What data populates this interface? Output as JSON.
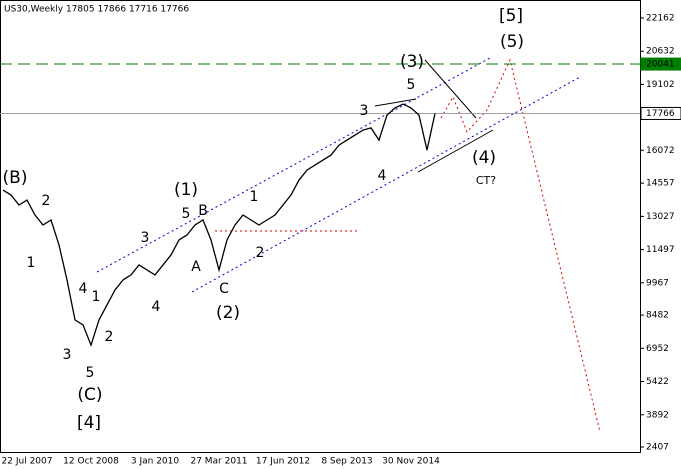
{
  "chart_data": {
    "type": "line",
    "title": "US30,Weekly  17805 17866 17716 17766",
    "categories": [
      null,
      null,
      null,
      "22 Jul 2007",
      null,
      null,
      null,
      null,
      null,
      null,
      null,
      "12 Oct 2008",
      null,
      null,
      null,
      null,
      null,
      null,
      null,
      "3 Jan 2010",
      null,
      null,
      null,
      null,
      null,
      null,
      null,
      "27 Mar 2011",
      null,
      null,
      null,
      null,
      null,
      null,
      null,
      "17 Jun 2012",
      null,
      null,
      null,
      null,
      null,
      null,
      null,
      "8 Sep 2013",
      null,
      null,
      null,
      null,
      null,
      null,
      null,
      "30 Nov 2014",
      null,
      null,
      null,
      null,
      null,
      null,
      null,
      null,
      null,
      null,
      null,
      null,
      null,
      null,
      null,
      null,
      null,
      null,
      null,
      null,
      null,
      null,
      null,
      null,
      null,
      null,
      null,
      null
    ],
    "series": [
      {
        "color": "#000000",
        "values": [
          14240,
          14010,
          13550,
          13780,
          13090,
          12630,
          12860,
          11710,
          10100,
          8260,
          8030,
          7100,
          8260,
          8950,
          9640,
          10100,
          10330,
          10790,
          10560,
          10330,
          10790,
          11250,
          11940,
          12170,
          12630,
          12860,
          11940,
          10560,
          11940,
          12630,
          13090,
          12860,
          12630,
          12860,
          13090,
          13550,
          14010,
          14700,
          15160,
          15390,
          15620,
          15850,
          16310,
          16540,
          16770,
          17000,
          17100,
          16540,
          17690,
          18020,
          18200,
          18020,
          17690,
          16080,
          17766,
          null,
          null,
          null,
          null,
          null,
          null,
          null,
          null,
          null,
          null,
          null,
          null,
          null,
          null,
          null,
          null,
          null,
          null,
          null,
          null,
          null,
          null,
          null,
          null,
          null
        ]
      }
    ],
    "ylim": [
      2407,
      22162
    ],
    "yticks": [
      2407,
      3892,
      5422,
      6952,
      8482,
      9967,
      11497,
      13027,
      14557,
      16072,
      17766,
      19102,
      20041,
      20632,
      22162
    ],
    "levels": [
      {
        "value": 20041,
        "color": "#008000"
      },
      {
        "value": 17766,
        "color": "#a0a0a0"
      }
    ],
    "annotations": [
      {
        "text": "(B)",
        "color": "#000080"
      },
      {
        "text": "2",
        "color": "#993333"
      },
      {
        "text": "1",
        "color": "#993333"
      },
      {
        "text": "4",
        "color": "#993333"
      },
      {
        "text": "1",
        "color": "#993333"
      },
      {
        "text": "2",
        "color": "#993333"
      },
      {
        "text": "3",
        "color": "#993333"
      },
      {
        "text": "5",
        "color": "#993333"
      },
      {
        "text": "(C)",
        "color": "#000080"
      },
      {
        "text": "[4]",
        "color": "#008000"
      },
      {
        "text": "3",
        "color": "#993333"
      },
      {
        "text": "4",
        "color": "#993333"
      },
      {
        "text": "(1)",
        "color": "#000080"
      },
      {
        "text": "5",
        "color": "#993333"
      },
      {
        "text": "B",
        "color": "#993333"
      },
      {
        "text": "A",
        "color": "#993333"
      },
      {
        "text": "C",
        "color": "#993333"
      },
      {
        "text": "(2)",
        "color": "#000080"
      },
      {
        "text": "1",
        "color": "#993333"
      },
      {
        "text": "2",
        "color": "#993333"
      },
      {
        "text": "3",
        "color": "#993333"
      },
      {
        "text": "5",
        "color": "#993333"
      },
      {
        "text": "(3)",
        "color": "#000080"
      },
      {
        "text": "4",
        "color": "#993333"
      },
      {
        "text": "(4)",
        "color": "#000080"
      },
      {
        "text": "CT?",
        "color": "#000080"
      },
      {
        "text": "(5)",
        "color": "#000080"
      },
      {
        "text": "[5]",
        "color": "#008000"
      }
    ]
  }
}
